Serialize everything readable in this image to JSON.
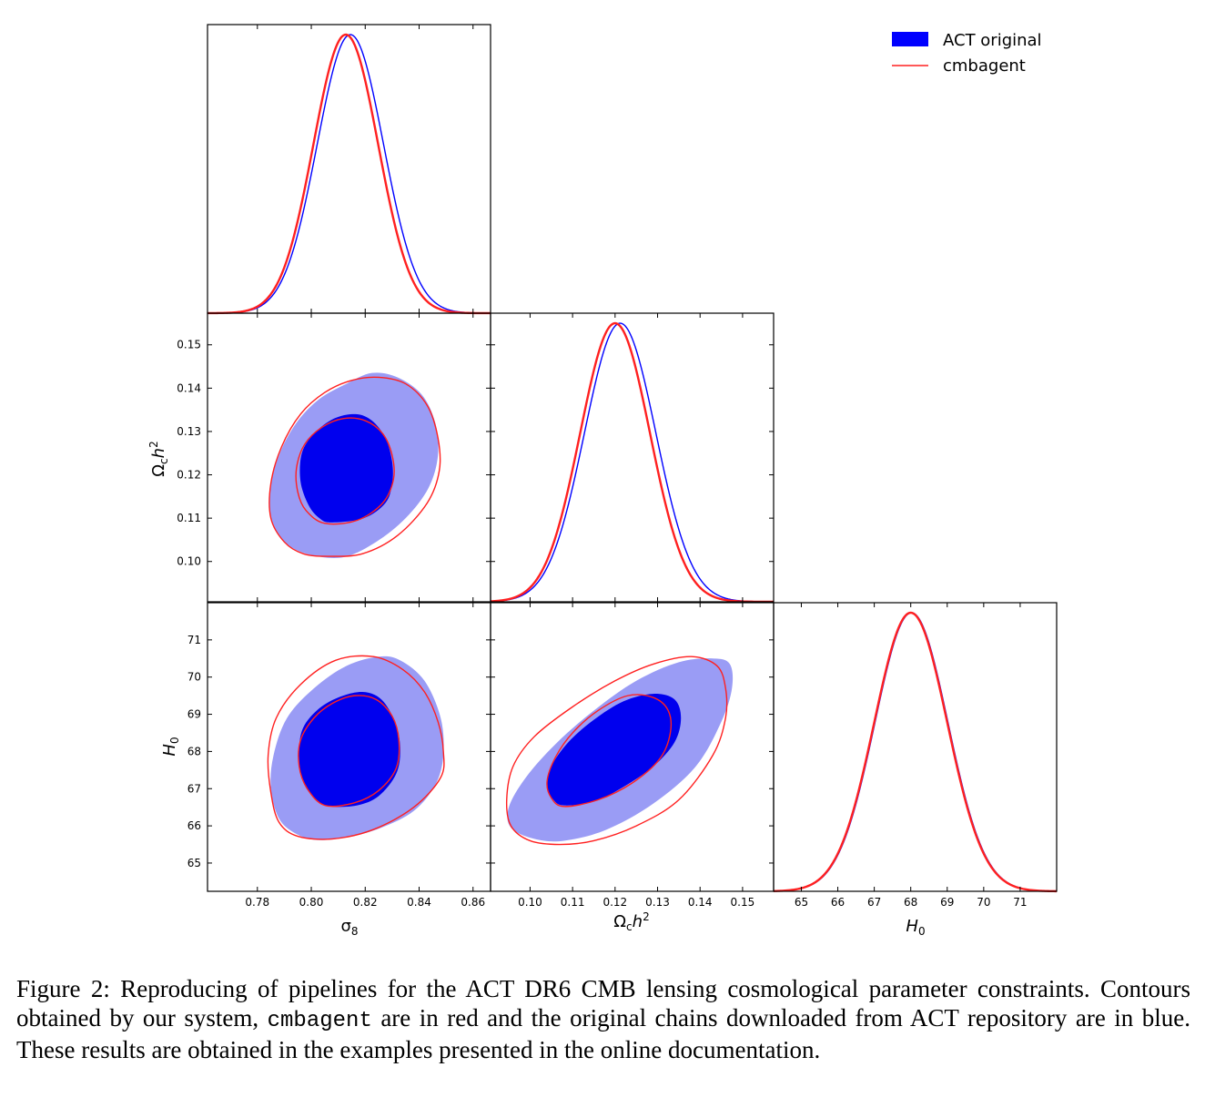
{
  "chart_data": {
    "type": "triangle-corner-plot",
    "parameters": [
      {
        "key": "sigma8",
        "label": "σ8",
        "range": [
          0.7615,
          0.8665
        ],
        "ticks": [
          0.78,
          0.8,
          0.82,
          0.84,
          0.86
        ],
        "tick_labels": [
          "0.78",
          "0.80",
          "0.82",
          "0.84",
          "0.86"
        ]
      },
      {
        "key": "omch2",
        "label": "Ωch2",
        "range": [
          0.0907,
          0.1573
        ],
        "ticks": [
          0.1,
          0.11,
          0.12,
          0.13,
          0.14,
          0.15
        ],
        "tick_labels": [
          "0.10",
          "0.11",
          "0.12",
          "0.13",
          "0.14",
          "0.15"
        ]
      },
      {
        "key": "H0",
        "label": "H0",
        "range": [
          64.24,
          72.0
        ],
        "ticks": [
          65,
          66,
          67,
          68,
          69,
          70,
          71
        ],
        "tick_labels": [
          "65",
          "66",
          "67",
          "68",
          "69",
          "70",
          "71"
        ]
      }
    ],
    "axis_labels": {
      "sigma8": {
        "main": "σ",
        "sub": "8"
      },
      "omch2": {
        "main": "Ω",
        "sub": "c",
        "tail": "h",
        "sup": "2"
      },
      "H0": {
        "main": "H",
        "sub": "0"
      }
    },
    "legend": {
      "position": "top-right",
      "entries": [
        {
          "label": "ACT original",
          "style": "filled",
          "color": "#0000ff"
        },
        {
          "label": "cmbagent",
          "style": "line",
          "color": "#ff2020"
        }
      ]
    },
    "series": [
      {
        "name": "ACT original",
        "color": "#0000ff",
        "inner_fill": "#0000ee",
        "outer_fill": "#9a9cf5",
        "marginals": {
          "sigma8": {
            "mean": 0.8145,
            "sigma": 0.0123
          },
          "omch2": {
            "mean": 0.1212,
            "sigma": 0.0084
          },
          "H0": {
            "mean": 68.02,
            "sigma": 1.0
          }
        },
        "contours": {
          "sigma8-omch2": {
            "inner": [
              [
                0.8075,
                0.109
              ],
              [
                0.8195,
                0.11
              ],
              [
                0.8275,
                0.1135
              ],
              [
                0.83,
                0.118
              ],
              [
                0.83,
                0.123
              ],
              [
                0.8275,
                0.1285
              ],
              [
                0.8225,
                0.1325
              ],
              [
                0.8165,
                0.134
              ],
              [
                0.8085,
                0.133
              ],
              [
                0.801,
                0.1295
              ],
              [
                0.7965,
                0.125
              ],
              [
                0.796,
                0.1185
              ],
              [
                0.799,
                0.113
              ],
              [
                0.803,
                0.11
              ]
            ],
            "outer": [
              [
                0.8,
                0.1015
              ],
              [
                0.812,
                0.101
              ],
              [
                0.824,
                0.1045
              ],
              [
                0.835,
                0.11
              ],
              [
                0.8435,
                0.117
              ],
              [
                0.847,
                0.1245
              ],
              [
                0.846,
                0.132
              ],
              [
                0.841,
                0.1385
              ],
              [
                0.832,
                0.1425
              ],
              [
                0.8225,
                0.1435
              ],
              [
                0.813,
                0.141
              ],
              [
                0.803,
                0.1375
              ],
              [
                0.7945,
                0.132
              ],
              [
                0.788,
                0.1245
              ],
              [
                0.7845,
                0.116
              ],
              [
                0.7855,
                0.109
              ],
              [
                0.791,
                0.104
              ]
            ]
          },
          "sigma8-H0": {
            "inner": [
              [
                0.807,
                66.52
              ],
              [
                0.817,
                66.55
              ],
              [
                0.825,
                66.8
              ],
              [
                0.8315,
                67.4
              ],
              [
                0.833,
                68.1
              ],
              [
                0.831,
                68.8
              ],
              [
                0.826,
                69.4
              ],
              [
                0.819,
                69.6
              ],
              [
                0.81,
                69.45
              ],
              [
                0.802,
                69.1
              ],
              [
                0.7965,
                68.55
              ],
              [
                0.7955,
                67.75
              ],
              [
                0.7975,
                67.1
              ],
              [
                0.802,
                66.7
              ]
            ],
            "outer": [
              [
                0.802,
                65.62
              ],
              [
                0.814,
                65.7
              ],
              [
                0.826,
                65.95
              ],
              [
                0.838,
                66.4
              ],
              [
                0.846,
                67.1
              ],
              [
                0.849,
                67.9
              ],
              [
                0.848,
                68.9
              ],
              [
                0.842,
                69.9
              ],
              [
                0.833,
                70.45
              ],
              [
                0.825,
                70.55
              ],
              [
                0.813,
                70.3
              ],
              [
                0.801,
                69.7
              ],
              [
                0.791,
                68.9
              ],
              [
                0.786,
                67.9
              ],
              [
                0.785,
                67.0
              ],
              [
                0.788,
                66.2
              ],
              [
                0.794,
                65.8
              ]
            ]
          },
          "omch2-H0": {
            "inner": [
              [
                0.108,
                66.55
              ],
              [
                0.115,
                66.65
              ],
              [
                0.122,
                67.05
              ],
              [
                0.129,
                67.6
              ],
              [
                0.134,
                68.25
              ],
              [
                0.1355,
                68.9
              ],
              [
                0.134,
                69.4
              ],
              [
                0.129,
                69.55
              ],
              [
                0.122,
                69.35
              ],
              [
                0.115,
                68.85
              ],
              [
                0.109,
                68.25
              ],
              [
                0.105,
                67.6
              ],
              [
                0.104,
                67.05
              ],
              [
                0.1055,
                66.7
              ]
            ],
            "outer": [
              [
                0.101,
                65.65
              ],
              [
                0.108,
                65.6
              ],
              [
                0.118,
                65.9
              ],
              [
                0.129,
                66.6
              ],
              [
                0.139,
                67.6
              ],
              [
                0.145,
                68.8
              ],
              [
                0.1475,
                69.7
              ],
              [
                0.147,
                70.35
              ],
              [
                0.143,
                70.5
              ],
              [
                0.135,
                70.4
              ],
              [
                0.125,
                69.9
              ],
              [
                0.115,
                69.1
              ],
              [
                0.106,
                68.2
              ],
              [
                0.099,
                67.3
              ],
              [
                0.095,
                66.5
              ],
              [
                0.0955,
                65.95
              ]
            ]
          }
        }
      },
      {
        "name": "cmbagent",
        "color": "#ff2020",
        "marginals": {
          "sigma8": {
            "mean": 0.8128,
            "sigma": 0.012
          },
          "omch2": {
            "mean": 0.12,
            "sigma": 0.0082
          },
          "H0": {
            "mean": 68.0,
            "sigma": 1.0
          }
        },
        "contours": {
          "sigma8-omch2": {
            "inner": [
              [
                0.805,
                0.1088
              ],
              [
                0.817,
                0.1095
              ],
              [
                0.8265,
                0.1135
              ],
              [
                0.8305,
                0.119
              ],
              [
                0.83,
                0.1245
              ],
              [
                0.8265,
                0.1295
              ],
              [
                0.82,
                0.1325
              ],
              [
                0.812,
                0.133
              ],
              [
                0.804,
                0.131
              ],
              [
                0.7975,
                0.127
              ],
              [
                0.7945,
                0.1215
              ],
              [
                0.795,
                0.116
              ],
              [
                0.798,
                0.1118
              ]
            ],
            "outer": [
              [
                0.806,
                0.1012
              ],
              [
                0.819,
                0.1018
              ],
              [
                0.832,
                0.106
              ],
              [
                0.843,
                0.1135
              ],
              [
                0.8475,
                0.121
              ],
              [
                0.847,
                0.1285
              ],
              [
                0.843,
                0.136
              ],
              [
                0.835,
                0.141
              ],
              [
                0.825,
                0.1425
              ],
              [
                0.815,
                0.1418
              ],
              [
                0.805,
                0.139
              ],
              [
                0.796,
                0.134
              ],
              [
                0.789,
                0.1265
              ],
              [
                0.785,
                0.118
              ],
              [
                0.785,
                0.11
              ],
              [
                0.79,
                0.1045
              ],
              [
                0.797,
                0.1018
              ]
            ]
          },
          "sigma8-H0": {
            "inner": [
              [
                0.805,
                66.55
              ],
              [
                0.816,
                66.62
              ],
              [
                0.825,
                66.95
              ],
              [
                0.8315,
                67.55
              ],
              [
                0.8325,
                68.3
              ],
              [
                0.83,
                68.95
              ],
              [
                0.824,
                69.4
              ],
              [
                0.816,
                69.5
              ],
              [
                0.808,
                69.3
              ],
              [
                0.801,
                68.9
              ],
              [
                0.796,
                68.3
              ],
              [
                0.7955,
                67.6
              ],
              [
                0.7985,
                67.0
              ]
            ],
            "outer": [
              [
                0.795,
                65.72
              ],
              [
                0.808,
                65.65
              ],
              [
                0.823,
                65.9
              ],
              [
                0.838,
                66.5
              ],
              [
                0.848,
                67.3
              ],
              [
                0.849,
                68.0
              ],
              [
                0.847,
                68.8
              ],
              [
                0.842,
                69.6
              ],
              [
                0.834,
                70.2
              ],
              [
                0.823,
                70.55
              ],
              [
                0.809,
                70.45
              ],
              [
                0.796,
                69.8
              ],
              [
                0.787,
                68.9
              ],
              [
                0.784,
                67.9
              ],
              [
                0.785,
                66.9
              ],
              [
                0.788,
                66.1
              ]
            ]
          },
          "omch2-H0": {
            "inner": [
              [
                0.108,
                66.52
              ],
              [
                0.116,
                66.7
              ],
              [
                0.124,
                67.15
              ],
              [
                0.1305,
                67.8
              ],
              [
                0.133,
                68.5
              ],
              [
                0.1325,
                69.1
              ],
              [
                0.129,
                69.45
              ],
              [
                0.123,
                69.5
              ],
              [
                0.116,
                69.1
              ],
              [
                0.11,
                68.5
              ],
              [
                0.106,
                67.85
              ],
              [
                0.104,
                67.2
              ],
              [
                0.105,
                66.75
              ]
            ],
            "outer": [
              [
                0.107,
                65.5
              ],
              [
                0.115,
                65.6
              ],
              [
                0.125,
                66.0
              ],
              [
                0.135,
                66.7
              ],
              [
                0.143,
                67.9
              ],
              [
                0.146,
                68.9
              ],
              [
                0.146,
                69.7
              ],
              [
                0.144,
                70.3
              ],
              [
                0.138,
                70.55
              ],
              [
                0.129,
                70.35
              ],
              [
                0.12,
                69.9
              ],
              [
                0.11,
                69.2
              ],
              [
                0.101,
                68.4
              ],
              [
                0.096,
                67.6
              ],
              [
                0.0945,
                66.7
              ],
              [
                0.0955,
                66.0
              ],
              [
                0.1,
                65.6
              ]
            ]
          }
        }
      }
    ]
  },
  "caption": {
    "before": "Figure 2: Reproducing of pipelines for the ACT DR6 CMB lensing cosmological parameter constraints. Contours obtained by our system, ",
    "code": "cmbagent",
    "after": " are in red and the original chains downloaded from ACT repository are in blue. These results are obtained in the examples presented in the online documentation."
  }
}
